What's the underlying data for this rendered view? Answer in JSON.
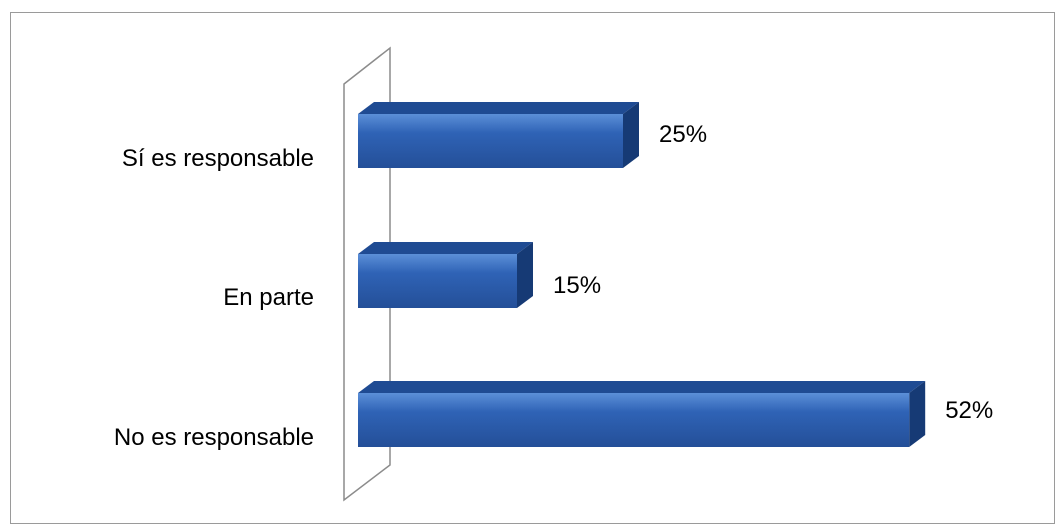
{
  "chart_data": {
    "type": "bar",
    "orientation": "horizontal",
    "three_d": true,
    "categories": [
      "Sí es responsable",
      "En parte",
      "No es responsable"
    ],
    "values": [
      25,
      15,
      52
    ],
    "data_labels": [
      "25%",
      "15%",
      "52%"
    ],
    "unit": "%",
    "title": "",
    "xlabel": "",
    "ylabel": "",
    "xlim": [
      0,
      52
    ],
    "grid": false,
    "legend": "none",
    "colors": {
      "bar_front": "#2f63b6",
      "bar_top": "#1f4b93",
      "bar_side": "#163a75",
      "bar_highlight": "#5b8fd8",
      "wall_stroke": "#8c8c8c",
      "frame": "#9a9a9a"
    }
  }
}
